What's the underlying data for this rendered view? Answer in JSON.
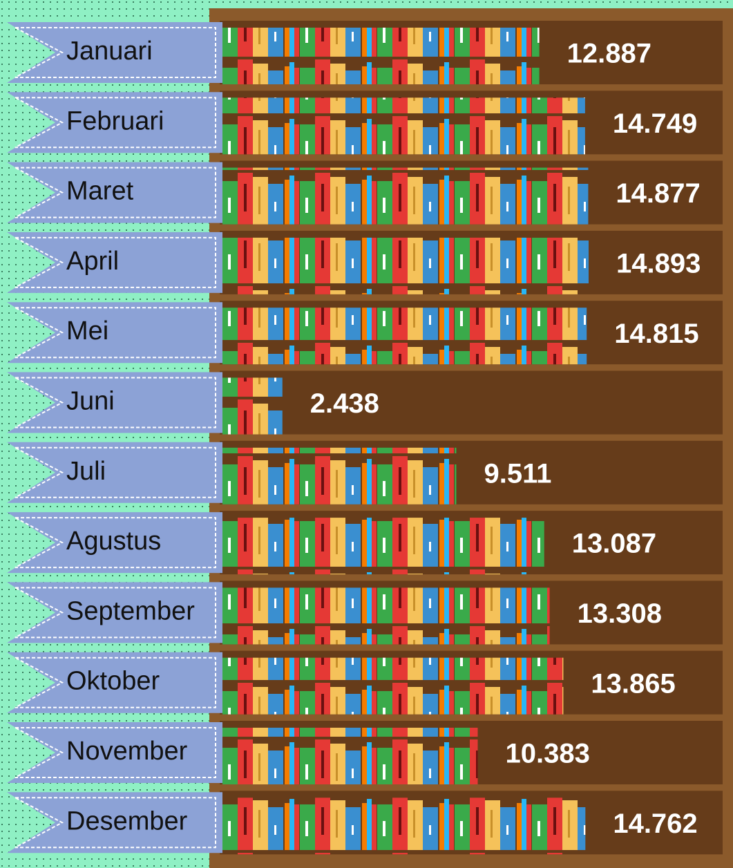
{
  "chart_data": {
    "type": "bar",
    "orientation": "horizontal",
    "categories": [
      "Januari",
      "Februari",
      "Maret",
      "April",
      "Mei",
      "Juni",
      "Juli",
      "Agustus",
      "September",
      "Oktober",
      "November",
      "Desember"
    ],
    "values": [
      12887,
      14749,
      14877,
      14893,
      14815,
      2438,
      9511,
      13087,
      13308,
      13865,
      10383,
      14762
    ],
    "value_labels": [
      "12.887",
      "14.749",
      "14.877",
      "14.893",
      "14.815",
      "2.438",
      "9.511",
      "13.087",
      "13.308",
      "13.865",
      "10.383",
      "14.762"
    ]
  }
}
